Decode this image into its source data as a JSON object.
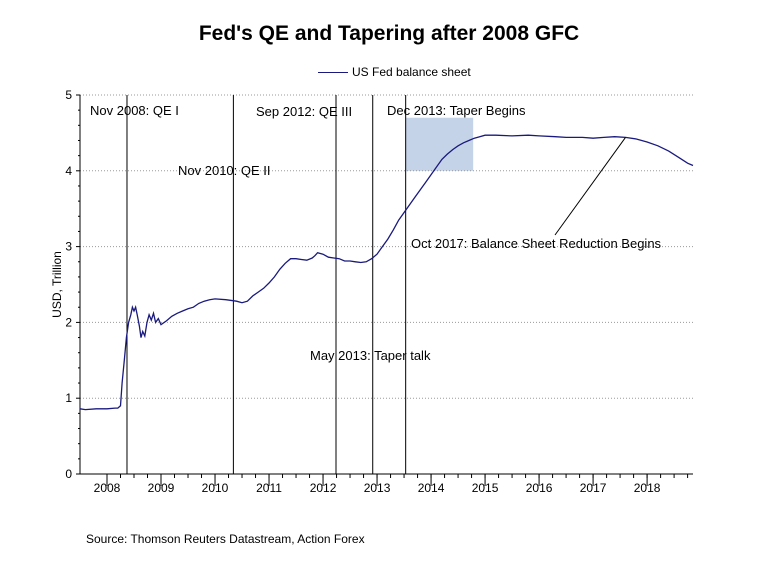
{
  "chart_data": {
    "type": "line",
    "title": "Fed's QE and Tapering after 2008 GFC",
    "ylabel": "USD, Trillion",
    "xlabel": "",
    "ylim": [
      0,
      5
    ],
    "yticks": [
      0,
      1,
      2,
      3,
      4,
      5
    ],
    "xlim": [
      2007.5,
      2018.85
    ],
    "xticks": [
      "2008",
      "2009",
      "2010",
      "2011",
      "2012",
      "2013",
      "2014",
      "2015",
      "2016",
      "2017",
      "2018"
    ],
    "grid": "horizontal dotted",
    "legend_position": "top-center",
    "series": [
      {
        "name": "US Fed balance sheet",
        "color": "#1a1a7e",
        "points": [
          [
            2007.5,
            0.86
          ],
          [
            2007.6,
            0.85
          ],
          [
            2007.8,
            0.86
          ],
          [
            2008.0,
            0.86
          ],
          [
            2008.15,
            0.87
          ],
          [
            2008.2,
            0.87
          ],
          [
            2008.25,
            0.9
          ],
          [
            2008.28,
            1.2
          ],
          [
            2008.32,
            1.5
          ],
          [
            2008.36,
            1.8
          ],
          [
            2008.4,
            2.0
          ],
          [
            2008.44,
            2.1
          ],
          [
            2008.47,
            2.2
          ],
          [
            2008.5,
            2.15
          ],
          [
            2008.53,
            2.2
          ],
          [
            2008.56,
            2.1
          ],
          [
            2008.6,
            1.95
          ],
          [
            2008.63,
            1.8
          ],
          [
            2008.66,
            1.88
          ],
          [
            2008.7,
            1.82
          ],
          [
            2008.74,
            2.0
          ],
          [
            2008.78,
            2.1
          ],
          [
            2008.82,
            2.03
          ],
          [
            2008.86,
            2.12
          ],
          [
            2008.9,
            2.0
          ],
          [
            2008.95,
            2.05
          ],
          [
            2009.0,
            1.97
          ],
          [
            2009.1,
            2.02
          ],
          [
            2009.2,
            2.08
          ],
          [
            2009.3,
            2.12
          ],
          [
            2009.4,
            2.15
          ],
          [
            2009.5,
            2.18
          ],
          [
            2009.6,
            2.2
          ],
          [
            2009.7,
            2.25
          ],
          [
            2009.8,
            2.28
          ],
          [
            2009.9,
            2.3
          ],
          [
            2010.0,
            2.31
          ],
          [
            2010.2,
            2.3
          ],
          [
            2010.4,
            2.28
          ],
          [
            2010.5,
            2.26
          ],
          [
            2010.6,
            2.28
          ],
          [
            2010.7,
            2.35
          ],
          [
            2010.8,
            2.4
          ],
          [
            2010.9,
            2.45
          ],
          [
            2011.0,
            2.52
          ],
          [
            2011.1,
            2.6
          ],
          [
            2011.2,
            2.7
          ],
          [
            2011.3,
            2.78
          ],
          [
            2011.4,
            2.84
          ],
          [
            2011.5,
            2.84
          ],
          [
            2011.6,
            2.83
          ],
          [
            2011.7,
            2.82
          ],
          [
            2011.8,
            2.85
          ],
          [
            2011.85,
            2.88
          ],
          [
            2011.9,
            2.92
          ],
          [
            2012.0,
            2.9
          ],
          [
            2012.1,
            2.86
          ],
          [
            2012.2,
            2.85
          ],
          [
            2012.3,
            2.84
          ],
          [
            2012.4,
            2.81
          ],
          [
            2012.5,
            2.81
          ],
          [
            2012.6,
            2.8
          ],
          [
            2012.7,
            2.79
          ],
          [
            2012.8,
            2.8
          ],
          [
            2012.9,
            2.84
          ],
          [
            2013.0,
            2.9
          ],
          [
            2013.1,
            3.0
          ],
          [
            2013.2,
            3.1
          ],
          [
            2013.3,
            3.22
          ],
          [
            2013.4,
            3.35
          ],
          [
            2013.5,
            3.45
          ],
          [
            2013.6,
            3.55
          ],
          [
            2013.7,
            3.65
          ],
          [
            2013.8,
            3.75
          ],
          [
            2013.9,
            3.85
          ],
          [
            2014.0,
            3.95
          ],
          [
            2014.1,
            4.05
          ],
          [
            2014.2,
            4.15
          ],
          [
            2014.3,
            4.22
          ],
          [
            2014.4,
            4.28
          ],
          [
            2014.5,
            4.33
          ],
          [
            2014.6,
            4.37
          ],
          [
            2014.7,
            4.4
          ],
          [
            2014.8,
            4.43
          ],
          [
            2014.9,
            4.45
          ],
          [
            2015.0,
            4.47
          ],
          [
            2015.2,
            4.47
          ],
          [
            2015.5,
            4.46
          ],
          [
            2015.8,
            4.47
          ],
          [
            2016.0,
            4.46
          ],
          [
            2016.3,
            4.45
          ],
          [
            2016.5,
            4.44
          ],
          [
            2016.8,
            4.44
          ],
          [
            2017.0,
            4.43
          ],
          [
            2017.2,
            4.44
          ],
          [
            2017.4,
            4.45
          ],
          [
            2017.6,
            4.44
          ],
          [
            2017.8,
            4.42
          ],
          [
            2018.0,
            4.38
          ],
          [
            2018.2,
            4.33
          ],
          [
            2018.4,
            4.26
          ],
          [
            2018.6,
            4.17
          ],
          [
            2018.75,
            4.1
          ],
          [
            2018.85,
            4.07
          ]
        ]
      }
    ],
    "vertical_lines": [
      {
        "label": "Nov 2008: QE I",
        "x": 2008.37
      },
      {
        "label": "Nov 2010: QE II",
        "x": 2010.34
      },
      {
        "label": "Sep 2012: QE III",
        "x": 2012.24
      },
      {
        "label": "May 2013: Taper talk",
        "x": 2012.92
      },
      {
        "label": "Dec 2013: Taper Begins",
        "x": 2013.53
      }
    ],
    "shaded_region": {
      "x_start": 2013.53,
      "x_end": 2014.78,
      "y_start": 4.0,
      "y_end": 4.7,
      "color": "#c5d3e8"
    },
    "annotations": [
      {
        "text": "Oct 2017: Balance Sheet Reduction Begins",
        "x": 2017.6,
        "y": 4.44
      }
    ]
  },
  "legend": {
    "label": "US Fed balance sheet"
  },
  "source": "Source: Thomson Reuters Datastream, Action Forex"
}
